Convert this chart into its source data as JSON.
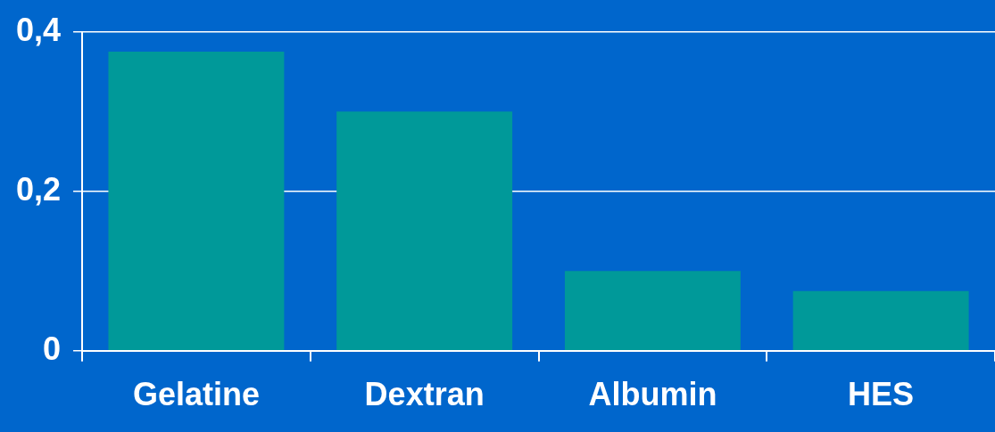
{
  "chart_data": {
    "type": "bar",
    "categories": [
      "Gelatine",
      "Dextran",
      "Albumin",
      "HES"
    ],
    "values": [
      0.375,
      0.3,
      0.1,
      0.075
    ],
    "color": "#009999",
    "ylim": [
      0,
      0.4
    ],
    "yticks": [
      0,
      {
        "value": 0.2,
        "label": "0,2"
      },
      {
        "value": 0.4,
        "label": "0,4"
      }
    ],
    "grid": "y"
  }
}
